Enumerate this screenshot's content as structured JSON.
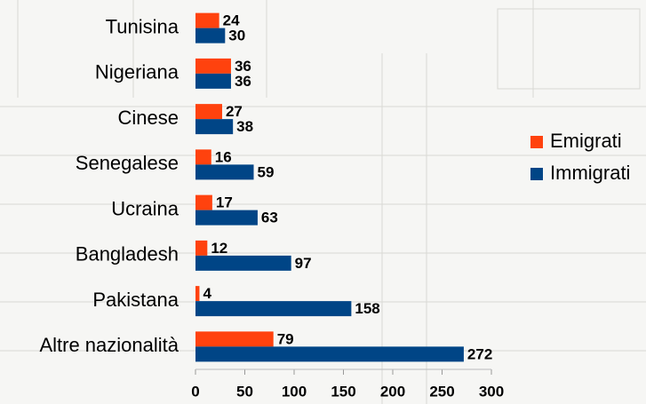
{
  "chart_data": {
    "type": "bar",
    "orientation": "horizontal",
    "categories": [
      "Tunisina",
      "Nigeriana",
      "Cinese",
      "Senegalese",
      "Ucraina",
      "Bangladesh",
      "Pakistana",
      "Altre nazionalità"
    ],
    "series": [
      {
        "name": "Emigrati",
        "color": "#ff420e",
        "values": [
          24,
          36,
          27,
          16,
          17,
          12,
          4,
          79
        ]
      },
      {
        "name": "Immigrati",
        "color": "#004586",
        "values": [
          30,
          36,
          38,
          59,
          63,
          97,
          158,
          272
        ]
      }
    ],
    "xlim": [
      0,
      300
    ],
    "xticks": [
      0,
      50,
      100,
      150,
      200,
      250,
      300
    ],
    "grid": false,
    "legend": "right"
  }
}
